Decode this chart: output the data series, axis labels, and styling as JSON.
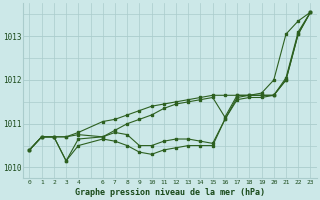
{
  "title": "Graphe pression niveau de la mer (hPa)",
  "bg_color": "#cce8e8",
  "grid_color": "#aacccc",
  "line_color": "#2d6020",
  "marker_color": "#2d6020",
  "xlim": [
    -0.5,
    23.5
  ],
  "ylim": [
    1009.75,
    1013.75
  ],
  "yticks": [
    1010,
    1011,
    1012,
    1013
  ],
  "xtick_vals": [
    0,
    1,
    2,
    3,
    4,
    6,
    7,
    8,
    9,
    10,
    11,
    12,
    13,
    14,
    15,
    16,
    17,
    18,
    19,
    20,
    21,
    22,
    23
  ],
  "series": [
    {
      "x": [
        0,
        1,
        2,
        3,
        4,
        6,
        7,
        8,
        9,
        10,
        11,
        12,
        13,
        14,
        15,
        16,
        17,
        18,
        19,
        20,
        21,
        22,
        23
      ],
      "y": [
        1010.4,
        1010.7,
        1010.7,
        1010.7,
        1010.8,
        1011.05,
        1011.1,
        1011.2,
        1011.3,
        1011.4,
        1011.45,
        1011.5,
        1011.55,
        1011.6,
        1011.65,
        1011.65,
        1011.65,
        1011.65,
        1011.7,
        1012.0,
        1013.05,
        1013.35,
        1013.55
      ]
    },
    {
      "x": [
        0,
        1,
        2,
        3,
        4,
        6,
        7,
        8,
        9,
        10,
        11,
        12,
        13,
        14,
        15,
        16,
        17,
        18,
        19,
        20,
        21,
        22,
        23
      ],
      "y": [
        1010.4,
        1010.7,
        1010.7,
        1010.15,
        1010.65,
        1010.7,
        1010.8,
        1010.75,
        1010.5,
        1010.5,
        1010.6,
        1010.65,
        1010.65,
        1010.6,
        1010.55,
        1011.1,
        1011.6,
        1011.65,
        1011.65,
        1011.65,
        1012.0,
        1013.05,
        1013.55
      ]
    },
    {
      "x": [
        0,
        1,
        2,
        3,
        4,
        6,
        7,
        8,
        9,
        10,
        11,
        12,
        13,
        14,
        15,
        16,
        17,
        18,
        19,
        20,
        21,
        22,
        23
      ],
      "y": [
        1010.4,
        1010.7,
        1010.7,
        1010.15,
        1010.5,
        1010.65,
        1010.6,
        1010.5,
        1010.35,
        1010.3,
        1010.4,
        1010.45,
        1010.5,
        1010.5,
        1010.5,
        1011.1,
        1011.55,
        1011.6,
        1011.6,
        1011.65,
        1012.0,
        1013.05,
        1013.55
      ]
    },
    {
      "x": [
        0,
        1,
        2,
        3,
        4,
        6,
        7,
        8,
        9,
        10,
        11,
        12,
        13,
        14,
        15,
        16,
        17,
        18,
        19,
        20,
        21,
        22,
        23
      ],
      "y": [
        1010.4,
        1010.7,
        1010.7,
        1010.7,
        1010.75,
        1010.7,
        1010.85,
        1011.0,
        1011.1,
        1011.2,
        1011.35,
        1011.45,
        1011.5,
        1011.55,
        1011.6,
        1011.15,
        1011.65,
        1011.65,
        1011.65,
        1011.65,
        1012.05,
        1013.1,
        1013.55
      ]
    }
  ]
}
